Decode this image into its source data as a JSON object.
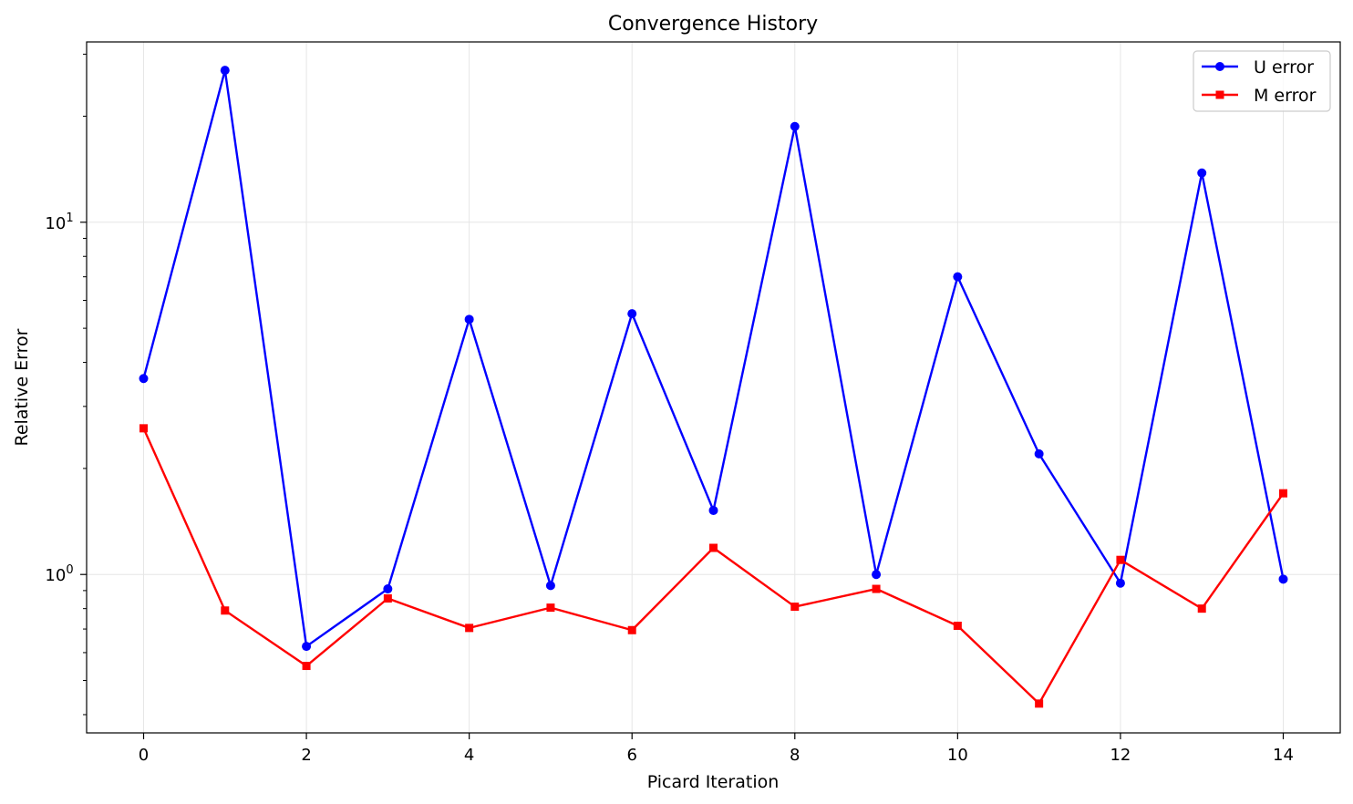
{
  "chart_data": {
    "type": "line",
    "title": "Convergence History",
    "xlabel": "Picard Iteration",
    "ylabel": "Relative Error",
    "yscale": "log",
    "xlim": [
      -0.7,
      14.7
    ],
    "ylim": [
      0.355,
      32.5
    ],
    "x": [
      0,
      1,
      2,
      3,
      4,
      5,
      6,
      7,
      8,
      9,
      10,
      11,
      12,
      13,
      14
    ],
    "xticks": [
      0,
      2,
      4,
      6,
      8,
      10,
      12,
      14
    ],
    "xtick_labels": [
      "0",
      "2",
      "4",
      "6",
      "8",
      "10",
      "12",
      "14"
    ],
    "yticks": [
      {
        "value": 10,
        "base": "10",
        "exp": "1"
      },
      {
        "value": 1,
        "base": "10",
        "exp": "0"
      }
    ],
    "grid": true,
    "legend_position": "top-right",
    "series": [
      {
        "name": "U error",
        "color": "#0000ff",
        "marker": "circle",
        "values": [
          3.6,
          27.0,
          0.625,
          0.91,
          5.3,
          0.93,
          5.5,
          1.52,
          18.7,
          1.0,
          7.0,
          2.2,
          0.945,
          13.8,
          0.97
        ]
      },
      {
        "name": "M error",
        "color": "#ff0000",
        "marker": "square",
        "values": [
          2.6,
          0.79,
          0.55,
          0.855,
          0.705,
          0.805,
          0.695,
          1.19,
          0.81,
          0.91,
          0.715,
          0.43,
          1.1,
          0.8,
          1.7
        ]
      }
    ]
  }
}
